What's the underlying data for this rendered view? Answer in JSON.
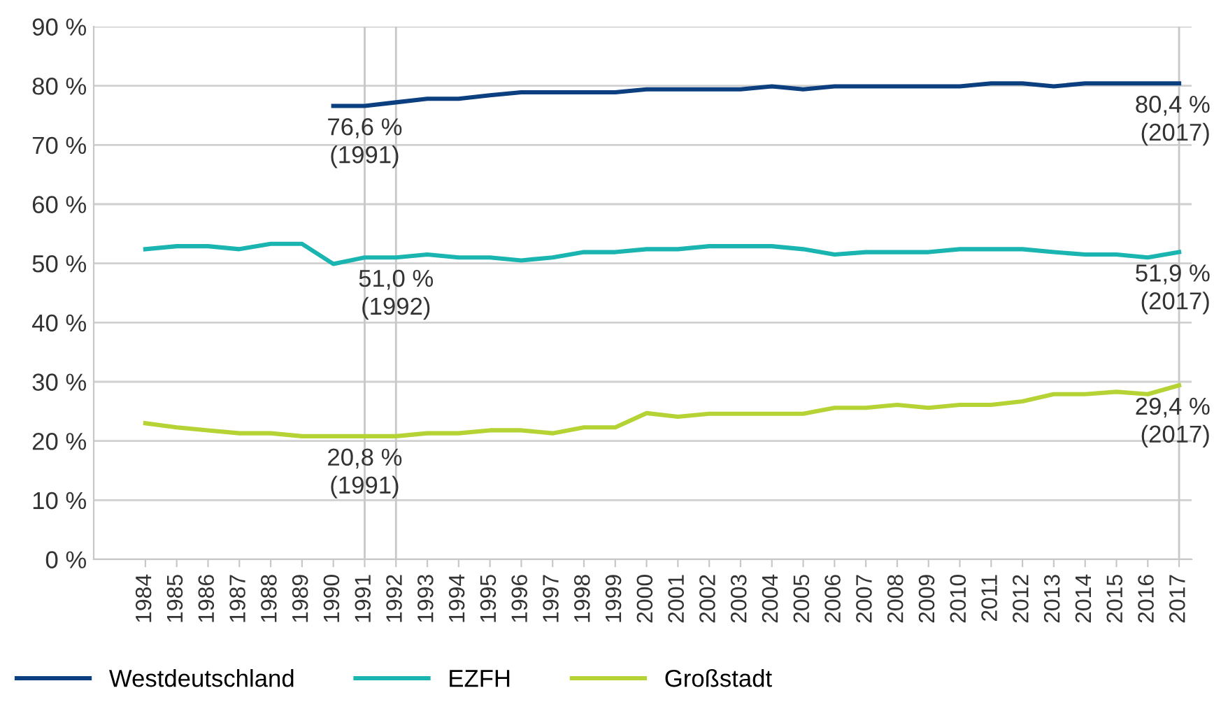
{
  "chart_data": {
    "type": "line",
    "categories": [
      "1984",
      "1985",
      "1986",
      "1987",
      "1988",
      "1989",
      "1990",
      "1991",
      "1992",
      "1993",
      "1994",
      "1995",
      "1996",
      "1997",
      "1998",
      "1999",
      "2000",
      "2001",
      "2002",
      "2003",
      "2004",
      "2005",
      "2006",
      "2007",
      "2008",
      "2009",
      "2010",
      "2011",
      "2012",
      "2013",
      "2014",
      "2015",
      "2016",
      "2017"
    ],
    "series": [
      {
        "name": "Westdeutschland",
        "color": "#0b3f80",
        "values": [
          null,
          null,
          null,
          null,
          null,
          null,
          76.6,
          76.6,
          77.2,
          77.8,
          77.8,
          78.4,
          78.9,
          78.9,
          78.9,
          78.9,
          79.4,
          79.4,
          79.4,
          79.4,
          79.9,
          79.4,
          79.9,
          79.9,
          79.9,
          79.9,
          79.9,
          80.4,
          80.4,
          79.9,
          80.4,
          80.4,
          80.4,
          80.4
        ]
      },
      {
        "name": "EZFH",
        "color": "#1ab5b0",
        "values": [
          52.4,
          52.9,
          52.9,
          52.4,
          53.3,
          53.3,
          49.9,
          51.0,
          51.0,
          51.5,
          51.0,
          51.0,
          50.5,
          51.0,
          51.9,
          51.9,
          52.4,
          52.4,
          52.9,
          52.9,
          52.9,
          52.4,
          51.5,
          51.9,
          51.9,
          51.9,
          52.4,
          52.4,
          52.4,
          51.9,
          51.5,
          51.5,
          51.0,
          51.9
        ]
      },
      {
        "name": "Großstadt",
        "color": "#b5d334",
        "values": [
          23.0,
          22.3,
          21.8,
          21.3,
          21.3,
          20.8,
          20.8,
          20.8,
          20.8,
          21.3,
          21.3,
          21.8,
          21.8,
          21.3,
          22.3,
          22.3,
          24.7,
          24.1,
          24.6,
          24.6,
          24.6,
          24.6,
          25.6,
          25.6,
          26.1,
          25.6,
          26.1,
          26.1,
          26.7,
          27.9,
          27.9,
          28.3,
          27.9,
          29.4
        ]
      }
    ],
    "ylim": [
      0,
      90
    ],
    "yticks": [
      {
        "value": 0,
        "label": "0 %"
      },
      {
        "value": 10,
        "label": "10 %"
      },
      {
        "value": 20,
        "label": "20 %"
      },
      {
        "value": 30,
        "label": "30 %"
      },
      {
        "value": 40,
        "label": "40 %"
      },
      {
        "value": 50,
        "label": "50 %"
      },
      {
        "value": 60,
        "label": "60 %"
      },
      {
        "value": 70,
        "label": "70 %"
      },
      {
        "value": 80,
        "label": "80 %"
      },
      {
        "value": 90,
        "label": "90 %"
      }
    ],
    "grid": "y",
    "legend": "bottom",
    "ref_lines": [
      {
        "axis": "x",
        "value": "1991",
        "color": "#c8c8c8"
      },
      {
        "axis": "x",
        "value": "1992",
        "color": "#c8c8c8"
      },
      {
        "axis": "x",
        "value": "2017",
        "color": "#c8c8c8"
      }
    ],
    "annotations": [
      {
        "text": "76,6 %\n(1991)",
        "x": "1991",
        "y": 76.6
      },
      {
        "text": "80,4 %\n(2017)",
        "x": "2017",
        "y": 80.4
      },
      {
        "text": "51,0 %\n(1992)",
        "x": "1992",
        "y": 51.0
      },
      {
        "text": "51,9 %\n(2017)",
        "x": "2017",
        "y": 51.9
      },
      {
        "text": "20,8 %\n(1991)",
        "x": "1991",
        "y": 20.8
      },
      {
        "text": "29,4 %\n(2017)",
        "x": "2017",
        "y": 29.4
      }
    ]
  }
}
